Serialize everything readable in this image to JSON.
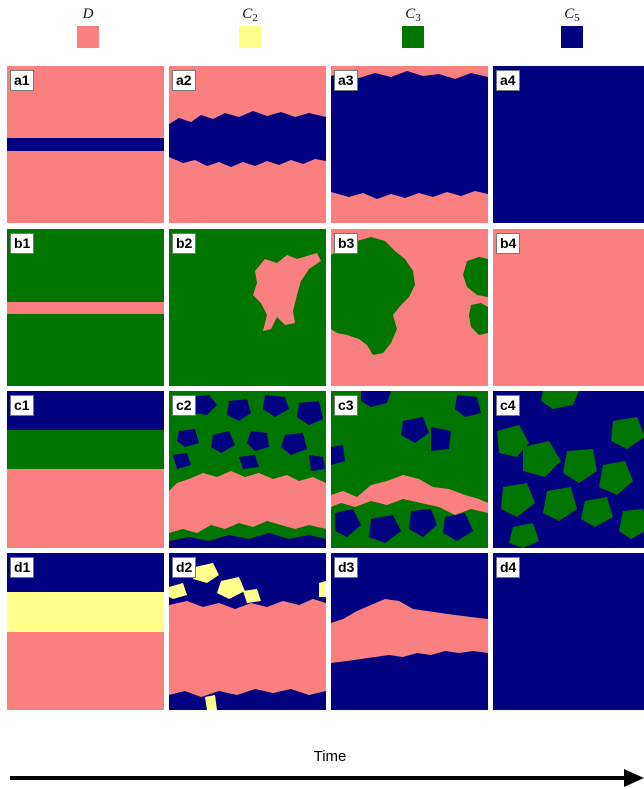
{
  "legend": [
    {
      "base": "D",
      "sub": "",
      "color": "#fa8080"
    },
    {
      "base": "C",
      "sub": "2",
      "color": "#ffff8a"
    },
    {
      "base": "C",
      "sub": "3",
      "color": "#007500"
    },
    {
      "base": "C",
      "sub": "5",
      "color": "#000080"
    }
  ],
  "colors": {
    "D": "#fa8080",
    "C2": "#ffff8a",
    "C3": "#007500",
    "C5": "#000080"
  },
  "panel_labels": {
    "a1": "a1",
    "a2": "a2",
    "a3": "a3",
    "a4": "a4",
    "b1": "b1",
    "b2": "b2",
    "b3": "b3",
    "b4": "b4",
    "c1": "c1",
    "c2": "c2",
    "c3": "c3",
    "c4": "c4",
    "d1": "d1",
    "d2": "d2",
    "d3": "d3",
    "d4": "d4"
  },
  "axis_label": "Time"
}
